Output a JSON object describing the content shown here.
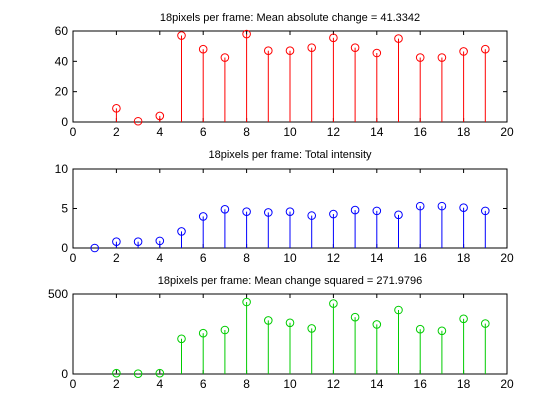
{
  "chart_data": [
    {
      "type": "stem",
      "title": "18pixels per frame: Mean absolute change = 41.3342",
      "color": "#ff0000",
      "xlim": [
        0,
        20
      ],
      "ylim": [
        0,
        60
      ],
      "xticks": [
        0,
        2,
        4,
        6,
        8,
        10,
        12,
        14,
        16,
        18,
        20
      ],
      "yticks": [
        0,
        20,
        40,
        60
      ],
      "x": [
        2,
        3,
        4,
        5,
        6,
        7,
        8,
        9,
        10,
        11,
        12,
        13,
        14,
        15,
        16,
        17,
        18,
        19
      ],
      "y": [
        9,
        0.5,
        4,
        57,
        48,
        42.5,
        58,
        47,
        47,
        49,
        55.5,
        49,
        45.5,
        55,
        42.5,
        42.5,
        46.5,
        48
      ]
    },
    {
      "type": "stem",
      "title": "18pixels per frame: Total intensity",
      "color": "#0000ff",
      "xlim": [
        0,
        20
      ],
      "ylim": [
        0,
        10
      ],
      "xticks": [
        0,
        2,
        4,
        6,
        8,
        10,
        12,
        14,
        16,
        18,
        20
      ],
      "yticks": [
        0,
        5,
        10
      ],
      "x": [
        1,
        2,
        3,
        4,
        5,
        6,
        7,
        8,
        9,
        10,
        11,
        12,
        13,
        14,
        15,
        16,
        17,
        18,
        19
      ],
      "y": [
        0,
        0.8,
        0.8,
        0.9,
        2.1,
        4,
        4.9,
        4.6,
        4.5,
        4.6,
        4.1,
        4.3,
        4.8,
        4.7,
        4.2,
        5.3,
        5.3,
        5.1,
        4.7
      ]
    },
    {
      "type": "stem",
      "title": "18pixels per frame: Mean change squared = 271.9796",
      "color": "#00cc00",
      "xlim": [
        0,
        20
      ],
      "ylim": [
        0,
        500
      ],
      "xticks": [
        0,
        2,
        4,
        6,
        8,
        10,
        12,
        14,
        16,
        18,
        20
      ],
      "yticks": [
        0,
        500
      ],
      "x": [
        2,
        3,
        4,
        5,
        6,
        7,
        8,
        9,
        10,
        11,
        12,
        13,
        14,
        15,
        16,
        17,
        18,
        19
      ],
      "y": [
        5,
        2,
        5,
        220,
        255,
        275,
        450,
        335,
        320,
        285,
        440,
        355,
        310,
        400,
        280,
        270,
        345,
        315
      ]
    }
  ]
}
